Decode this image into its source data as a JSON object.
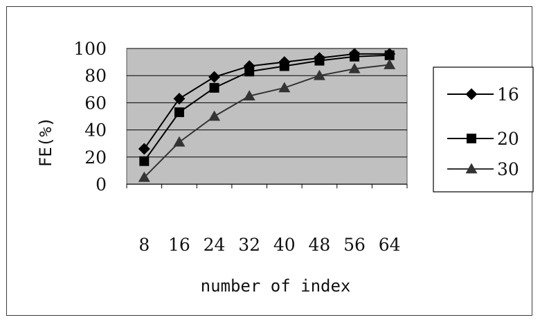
{
  "chart_data": {
    "type": "line",
    "title": "",
    "xlabel": "number of index",
    "ylabel": "FE(%)",
    "categories": [
      "8",
      "16",
      "24",
      "32",
      "40",
      "48",
      "56",
      "64"
    ],
    "ylim": [
      0,
      100
    ],
    "yticks": [
      "0",
      "20",
      "40",
      "60",
      "80",
      "100"
    ],
    "grid": "horizontal",
    "legend_position": "right",
    "plot_background": "#c0c0c0",
    "series": [
      {
        "name": "16",
        "marker": "diamond",
        "color": "#000000",
        "values": [
          26,
          63,
          79,
          87,
          90,
          93,
          96,
          96
        ]
      },
      {
        "name": "20",
        "marker": "square",
        "color": "#000000",
        "values": [
          17,
          53,
          71,
          83,
          87,
          91,
          94,
          95
        ]
      },
      {
        "name": "30",
        "marker": "triangle",
        "color": "#333333",
        "values": [
          5,
          31,
          50,
          65,
          71,
          80,
          85,
          88
        ]
      }
    ]
  }
}
